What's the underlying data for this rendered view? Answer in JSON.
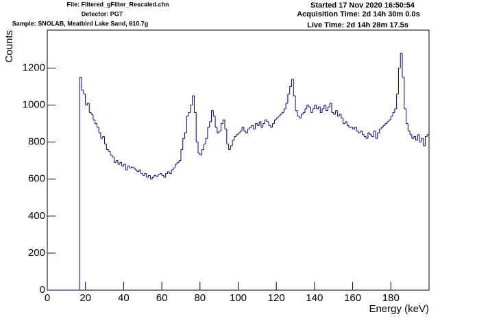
{
  "chart_data": {
    "type": "histogram",
    "file_label": "File: Filtered_gFilter_Rescaled.chn",
    "detector_label": "Detector: PGT",
    "sample_label": "Sample: SNOLAB, Meatbird Lake Sand, 610.7g",
    "started_label": "Started 17 Nov 2020 16:50:54",
    "acquisition_label": "Acquisition Time: 2d 14h 30m 0.0s",
    "live_label": "Live Time: 2d 14h 28m 17.5s",
    "x_label": "Energy (keV)",
    "y_label": "Counts",
    "color": "#000080",
    "xlim": [
      0,
      200
    ],
    "ylim": [
      0,
      1405
    ],
    "xticks": [
      0,
      20,
      40,
      60,
      80,
      100,
      120,
      140,
      160,
      180
    ],
    "yticks": [
      0,
      200,
      400,
      600,
      800,
      1000,
      1200
    ],
    "bins": [
      0,
      1,
      2,
      3,
      4,
      5,
      6,
      7,
      8,
      9,
      10,
      11,
      12,
      13,
      14,
      15,
      16,
      17,
      18,
      19,
      20,
      21,
      22,
      23,
      24,
      25,
      26,
      27,
      28,
      29,
      30,
      31,
      32,
      33,
      34,
      35,
      36,
      37,
      38,
      39,
      40,
      41,
      42,
      43,
      44,
      45,
      46,
      47,
      48,
      49,
      50,
      51,
      52,
      53,
      54,
      55,
      56,
      57,
      58,
      59,
      60,
      61,
      62,
      63,
      64,
      65,
      66,
      67,
      68,
      69,
      70,
      71,
      72,
      73,
      74,
      75,
      76,
      77,
      78,
      79,
      80,
      81,
      82,
      83,
      84,
      85,
      86,
      87,
      88,
      89,
      90,
      91,
      92,
      93,
      94,
      95,
      96,
      97,
      98,
      99,
      100,
      101,
      102,
      103,
      104,
      105,
      106,
      107,
      108,
      109,
      110,
      111,
      112,
      113,
      114,
      115,
      116,
      117,
      118,
      119,
      120,
      121,
      122,
      123,
      124,
      125,
      126,
      127,
      128,
      129,
      130,
      131,
      132,
      133,
      134,
      135,
      136,
      137,
      138,
      139,
      140,
      141,
      142,
      143,
      144,
      145,
      146,
      147,
      148,
      149,
      150,
      151,
      152,
      153,
      154,
      155,
      156,
      157,
      158,
      159,
      160,
      161,
      162,
      163,
      164,
      165,
      166,
      167,
      168,
      169,
      170,
      171,
      172,
      173,
      174,
      175,
      176,
      177,
      178,
      179,
      180,
      181,
      182,
      183,
      184,
      185,
      186,
      187,
      188,
      189,
      190,
      191,
      192,
      193,
      194,
      195,
      196,
      197,
      198,
      199,
      200
    ],
    "values": [
      0,
      0,
      0,
      0,
      0,
      0,
      0,
      0,
      0,
      0,
      0,
      0,
      0,
      0,
      0,
      0,
      0,
      1150,
      1080,
      1060,
      1000,
      1010,
      960,
      950,
      920,
      900,
      880,
      850,
      820,
      830,
      790,
      760,
      750,
      730,
      720,
      690,
      700,
      680,
      690,
      670,
      680,
      650,
      670,
      660,
      665,
      660,
      650,
      640,
      650,
      630,
      620,
      630,
      610,
      620,
      600,
      610,
      620,
      615,
      625,
      630,
      620,
      610,
      630,
      640,
      630,
      650,
      660,
      680,
      690,
      700,
      760,
      820,
      850,
      940,
      960,
      1000,
      1050,
      960,
      800,
      740,
      730,
      760,
      790,
      820,
      880,
      910,
      970,
      940,
      880,
      850,
      860,
      900,
      920,
      870,
      790,
      760,
      780,
      810,
      830,
      840,
      850,
      860,
      880,
      860,
      850,
      870,
      880,
      890,
      870,
      900,
      890,
      910,
      880,
      900,
      920,
      910,
      890,
      880,
      900,
      920,
      930,
      940,
      950,
      960,
      980,
      1010,
      1060,
      1100,
      1140,
      1050,
      970,
      940,
      930,
      950,
      960,
      980,
      1000,
      990,
      960,
      980,
      1000,
      980,
      990,
      960,
      980,
      1000,
      970,
      990,
      1010,
      960,
      950,
      970,
      940,
      950,
      930,
      900,
      910,
      890,
      880,
      880,
      870,
      880,
      860,
      850,
      860,
      840,
      830,
      820,
      850,
      840,
      830,
      860,
      820,
      850,
      870,
      880,
      890,
      900,
      910,
      920,
      940,
      960,
      980,
      1060,
      1200,
      1280,
      1150,
      980,
      900,
      860,
      840,
      820,
      830,
      810,
      840,
      800,
      820,
      780,
      830,
      840
    ]
  }
}
